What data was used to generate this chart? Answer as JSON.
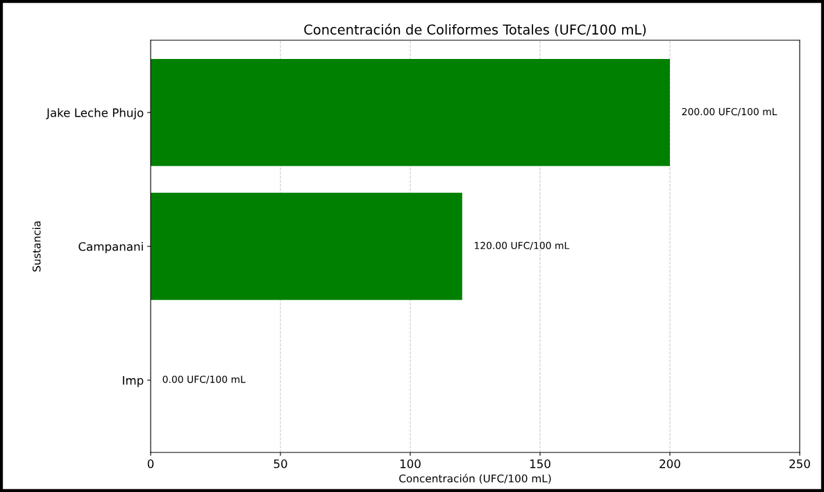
{
  "chart_data": {
    "type": "bar",
    "orientation": "horizontal",
    "title": "Concentración de Coliformes Totales (UFC/100 mL)",
    "xlabel": "Concentración (UFC/100 mL)",
    "ylabel": "Sustancia",
    "categories": [
      "Jake Leche Phujo",
      "Campanani",
      "Imp"
    ],
    "values": [
      200,
      120,
      0
    ],
    "color": "#008000",
    "value_labels": [
      "200.00 UFC/100 mL",
      "120.00 UFC/100 mL",
      "0.00 UFC/100 mL"
    ],
    "xlim": [
      0,
      250
    ],
    "xticks": [
      0,
      50,
      100,
      150,
      200,
      250
    ],
    "grid": "x",
    "legend": false
  }
}
